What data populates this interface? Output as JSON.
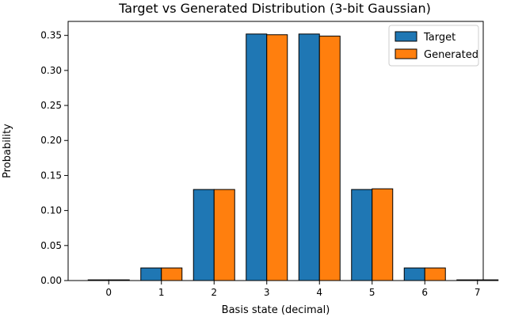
{
  "chart_data": {
    "type": "bar",
    "title": "Target vs Generated Distribution (3-bit Gaussian)",
    "xlabel": "Basis state (decimal)",
    "ylabel": "Probability",
    "categories": [
      "0",
      "1",
      "2",
      "3",
      "4",
      "5",
      "6",
      "7"
    ],
    "ylim": [
      0,
      0.37
    ],
    "yticks": [
      "0.00",
      "0.05",
      "0.10",
      "0.15",
      "0.20",
      "0.25",
      "0.30",
      "0.35"
    ],
    "grid": false,
    "legend_position": "top-right",
    "series": [
      {
        "name": "Target",
        "color": "#1f77b4",
        "values": [
          0.001,
          0.018,
          0.13,
          0.352,
          0.352,
          0.13,
          0.018,
          0.001
        ]
      },
      {
        "name": "Generated",
        "color": "#ff7f0e",
        "values": [
          0.001,
          0.018,
          0.13,
          0.351,
          0.349,
          0.131,
          0.018,
          0.001
        ]
      }
    ]
  }
}
